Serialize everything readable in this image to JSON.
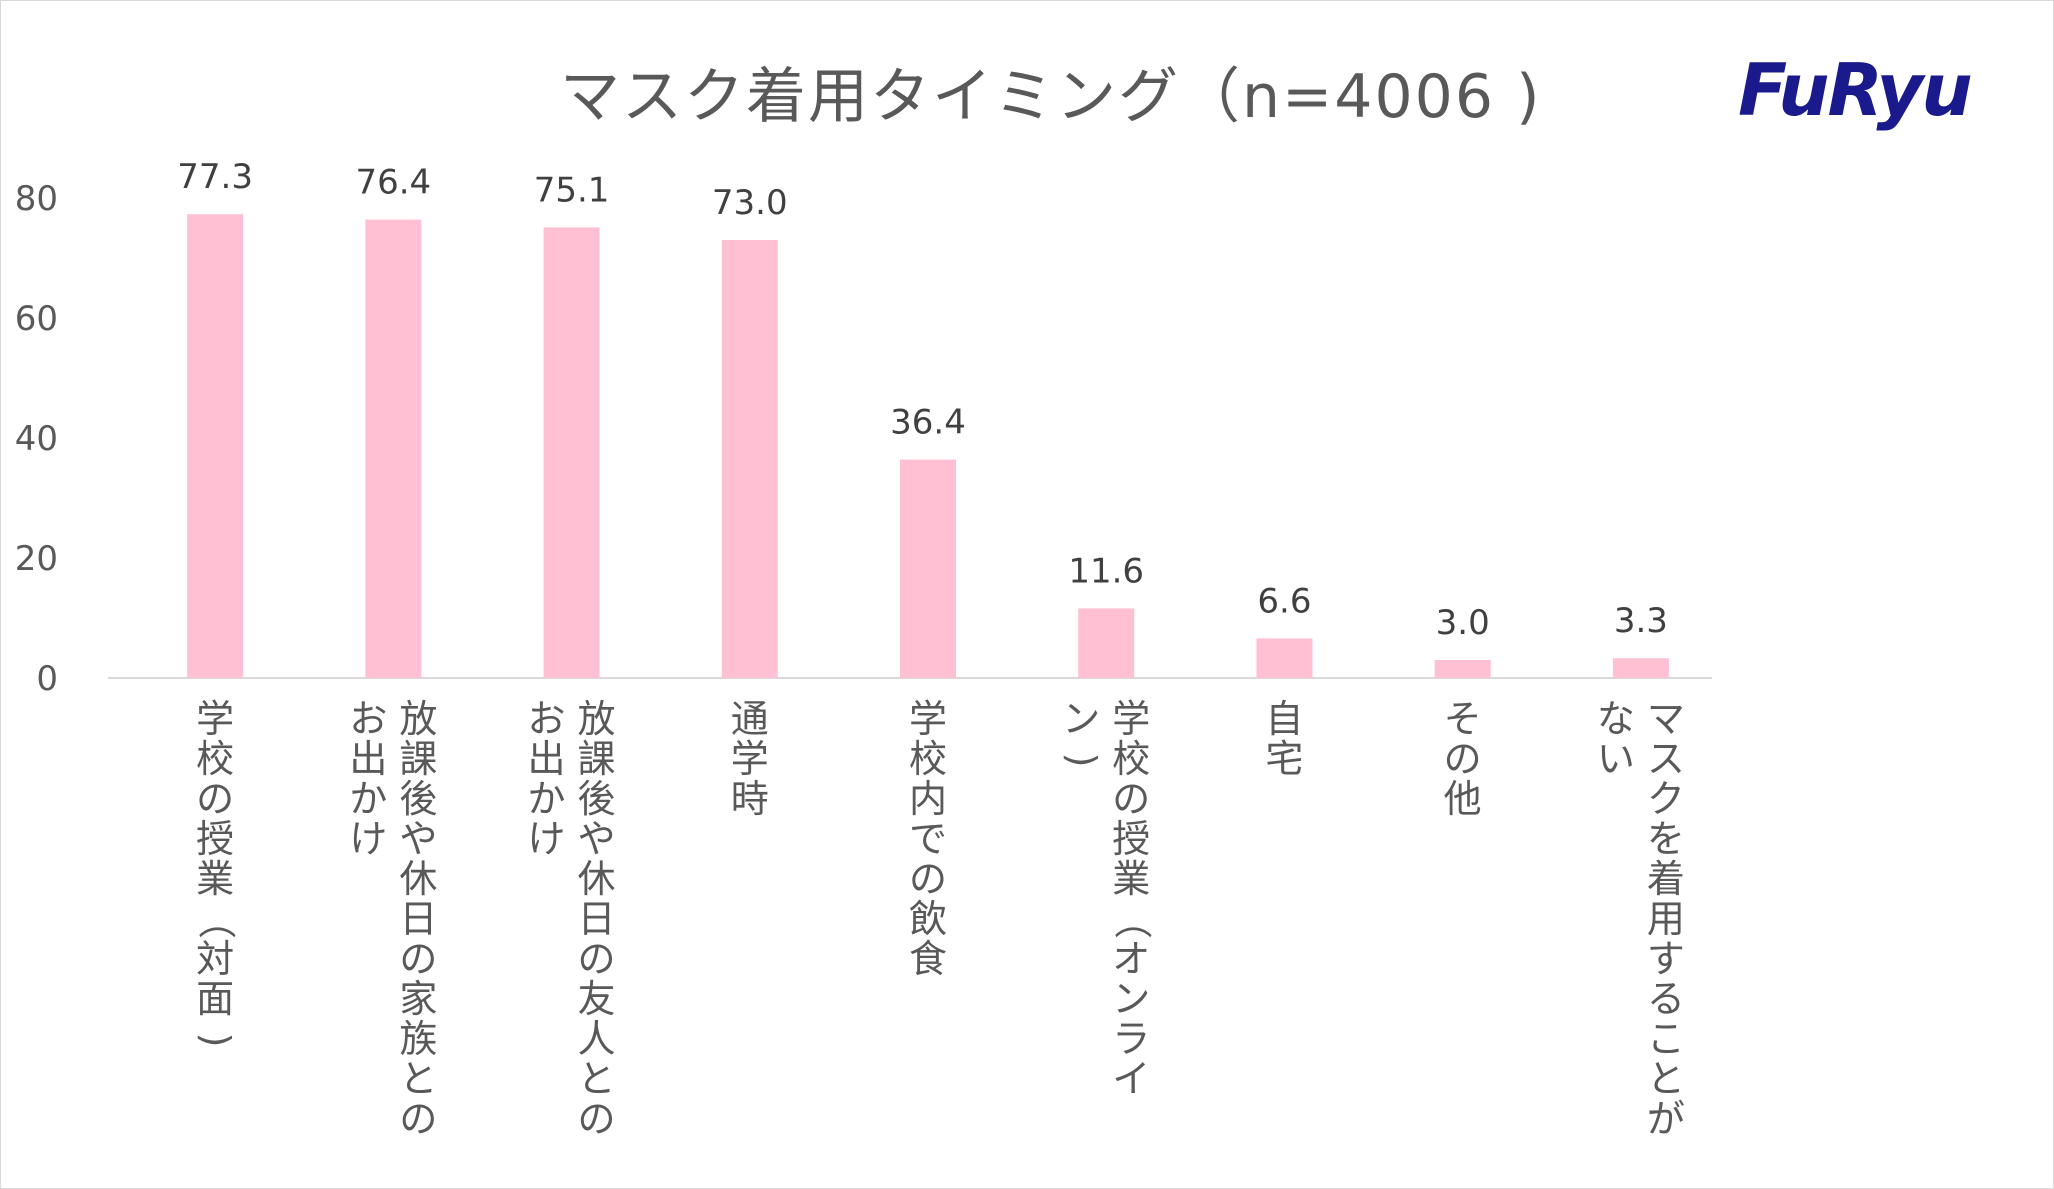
{
  "chart_data": {
    "type": "bar",
    "title": "マスク着用タイミング（n=4006 )",
    "categories": [
      "学校の授業（対面)",
      "放課後や休日の家族との\nお出かけ",
      "放課後や休日の友人との\nお出かけ",
      "通学時",
      "学校内での飲食",
      "学校の授業（オンライ\nン)",
      "自宅",
      "その他",
      "マスクを着用することが\nない"
    ],
    "values": [
      77.3,
      76.4,
      75.1,
      73.0,
      36.4,
      11.6,
      6.6,
      3.0,
      3.3
    ],
    "value_labels": [
      "77.3",
      "76.4",
      "75.1",
      "73.0",
      "36.4",
      "11.6",
      "6.6",
      "3.0",
      "3.3"
    ],
    "yticks": [
      "0",
      "20",
      "40",
      "60",
      "80"
    ],
    "ylim": [
      0,
      80
    ],
    "grid": false,
    "legend": false,
    "bar_color": "#ffc0d3",
    "axis_color": "#d9d9d9",
    "text_color": "#595959"
  },
  "logo": {
    "text": "FuRyu",
    "color": "#1a1a8c"
  }
}
